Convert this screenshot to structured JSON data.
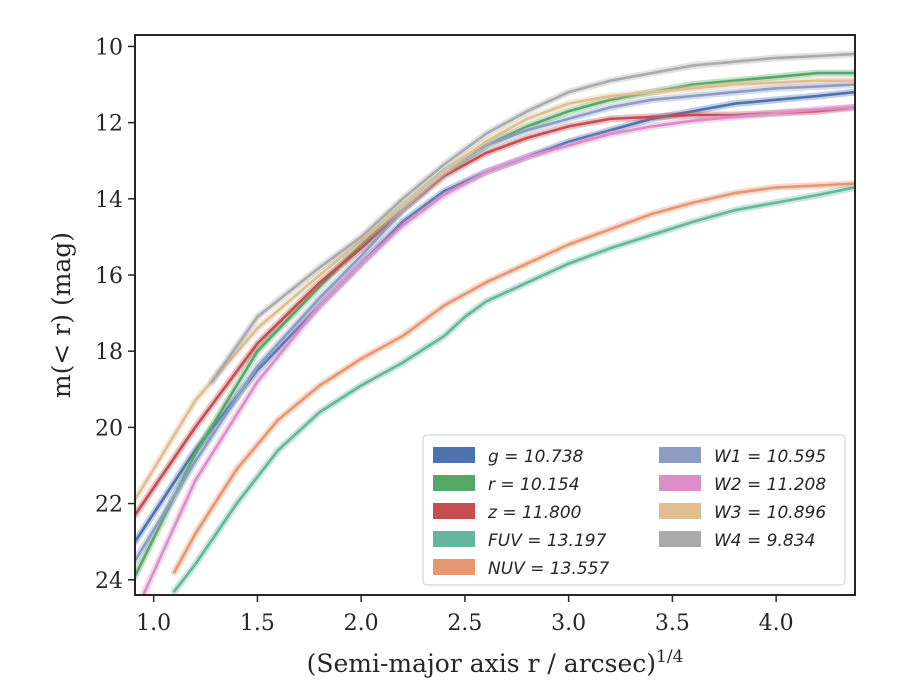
{
  "chart_data": {
    "type": "line",
    "xlabel": "(Semi-major axis r / arcsec)",
    "xlabel_sup": "1/4",
    "ylabel": "m(< r) (mag)",
    "xlim": [
      0.91,
      4.38
    ],
    "ylim": [
      24.4,
      9.7
    ],
    "y_inverted": true,
    "x_ticks": [
      "1.0",
      "1.5",
      "2.0",
      "2.5",
      "3.0",
      "3.5",
      "4.0"
    ],
    "y_ticks": [
      "10",
      "12",
      "14",
      "16",
      "18",
      "20",
      "22",
      "24"
    ],
    "legend_position": "lower-right",
    "legend_columns": 2,
    "series": [
      {
        "name": "g = 10.738",
        "color": "#4c72b0",
        "x": [
          0.91,
          1.2,
          1.5,
          1.8,
          2.0,
          2.2,
          2.4,
          2.6,
          2.8,
          3.0,
          3.2,
          3.4,
          3.6,
          3.8,
          4.0,
          4.2,
          4.38
        ],
        "y": [
          23.0,
          20.6,
          18.5,
          16.8,
          15.7,
          14.6,
          13.8,
          13.3,
          12.9,
          12.5,
          12.2,
          11.9,
          11.7,
          11.5,
          11.4,
          11.3,
          11.2
        ]
      },
      {
        "name": "r = 10.154",
        "color": "#55a868",
        "x": [
          0.91,
          1.2,
          1.5,
          1.8,
          2.0,
          2.2,
          2.4,
          2.6,
          2.8,
          3.0,
          3.2,
          3.4,
          3.6,
          3.8,
          4.0,
          4.2,
          4.38
        ],
        "y": [
          23.9,
          20.7,
          18.0,
          16.3,
          15.2,
          14.2,
          13.3,
          12.6,
          12.1,
          11.7,
          11.4,
          11.2,
          11.0,
          10.9,
          10.8,
          10.7,
          10.7
        ]
      },
      {
        "name": "z = 11.800",
        "color": "#c44e52",
        "x": [
          0.91,
          1.2,
          1.5,
          1.8,
          2.0,
          2.2,
          2.4,
          2.6,
          2.8,
          3.0,
          3.2,
          3.4,
          3.6,
          3.8,
          4.0,
          4.2,
          4.38
        ],
        "y": [
          22.3,
          20.0,
          17.8,
          16.2,
          15.3,
          14.3,
          13.4,
          12.8,
          12.4,
          12.1,
          11.9,
          11.85,
          11.8,
          11.8,
          11.75,
          11.7,
          11.6
        ]
      },
      {
        "name": "FUV = 13.197",
        "color": "#64b69c",
        "x": [
          1.1,
          1.2,
          1.4,
          1.6,
          1.8,
          2.0,
          2.2,
          2.4,
          2.5,
          2.6,
          2.8,
          3.0,
          3.2,
          3.4,
          3.6,
          3.8,
          4.0,
          4.2,
          4.38
        ],
        "y": [
          24.3,
          23.6,
          22.0,
          20.6,
          19.6,
          18.9,
          18.3,
          17.6,
          17.1,
          16.7,
          16.2,
          15.7,
          15.3,
          14.95,
          14.6,
          14.3,
          14.1,
          13.9,
          13.7
        ]
      },
      {
        "name": "NUV = 13.557",
        "color": "#e8966f",
        "x": [
          1.1,
          1.2,
          1.4,
          1.6,
          1.8,
          2.0,
          2.2,
          2.4,
          2.6,
          2.8,
          3.0,
          3.2,
          3.4,
          3.6,
          3.8,
          4.0,
          4.2,
          4.38
        ],
        "y": [
          23.8,
          22.8,
          21.1,
          19.8,
          18.9,
          18.2,
          17.6,
          16.8,
          16.2,
          15.7,
          15.2,
          14.8,
          14.4,
          14.1,
          13.85,
          13.7,
          13.65,
          13.6
        ]
      },
      {
        "name": "W1 = 10.595",
        "color": "#8c9dc4",
        "x": [
          0.91,
          1.2,
          1.5,
          1.8,
          2.0,
          2.2,
          2.4,
          2.6,
          2.8,
          3.0,
          3.2,
          3.4,
          3.6,
          3.8,
          4.0,
          4.2,
          4.38
        ],
        "y": [
          23.5,
          20.9,
          18.4,
          16.6,
          15.5,
          14.3,
          13.3,
          12.6,
          12.2,
          11.9,
          11.6,
          11.4,
          11.3,
          11.2,
          11.1,
          11.05,
          11.0
        ]
      },
      {
        "name": "W2 = 11.208",
        "color": "#dd8dc8",
        "x": [
          0.95,
          1.2,
          1.5,
          1.8,
          2.0,
          2.2,
          2.4,
          2.6,
          2.8,
          3.0,
          3.2,
          3.4,
          3.6,
          3.8,
          4.0,
          4.2,
          4.38
        ],
        "y": [
          24.4,
          21.4,
          18.8,
          16.8,
          15.7,
          14.7,
          13.9,
          13.3,
          12.9,
          12.6,
          12.3,
          12.1,
          11.95,
          11.85,
          11.75,
          11.65,
          11.6
        ]
      },
      {
        "name": "W3 = 10.896",
        "color": "#dfbf92",
        "x": [
          0.91,
          1.2,
          1.5,
          1.8,
          2.0,
          2.2,
          2.4,
          2.6,
          2.8,
          3.0,
          3.2,
          3.4,
          3.6,
          3.8,
          4.0,
          4.2,
          4.38
        ],
        "y": [
          21.9,
          19.3,
          17.4,
          16.0,
          15.1,
          14.2,
          13.3,
          12.5,
          11.9,
          11.5,
          11.3,
          11.2,
          11.1,
          11.0,
          10.95,
          10.9,
          10.9
        ]
      },
      {
        "name": "W4 = 9.834",
        "color": "#aaaaaa",
        "x": [
          1.28,
          1.5,
          1.8,
          2.0,
          2.2,
          2.4,
          2.6,
          2.8,
          3.0,
          3.2,
          3.4,
          3.6,
          3.8,
          4.0,
          4.2,
          4.38
        ],
        "y": [
          18.8,
          17.1,
          15.8,
          15.0,
          14.0,
          13.1,
          12.3,
          11.7,
          11.2,
          10.9,
          10.7,
          10.5,
          10.4,
          10.3,
          10.25,
          10.2
        ]
      }
    ]
  }
}
